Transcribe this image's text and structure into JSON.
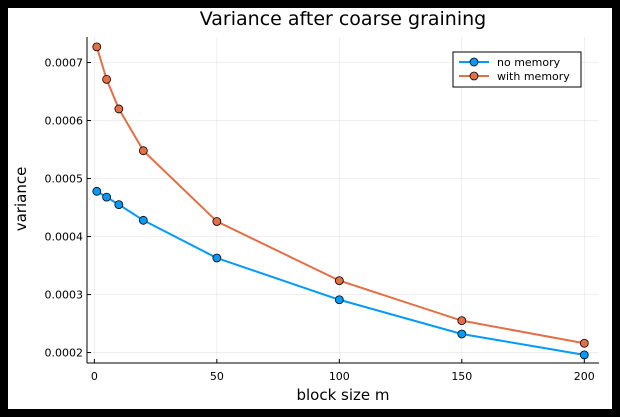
{
  "chart_data": {
    "type": "line",
    "title": "Variance after coarse graining",
    "xlabel": "block size m",
    "ylabel": "variance",
    "xlim": [
      -3,
      206
    ],
    "ylim": [
      0.000182,
      0.000744
    ],
    "xticks": [
      0,
      50,
      100,
      150,
      200
    ],
    "xtick_labels": [
      "0",
      "50",
      "100",
      "150",
      "200"
    ],
    "yticks": [
      0.0002,
      0.0003,
      0.0004,
      0.0005,
      0.0006,
      0.0007
    ],
    "ytick_labels": [
      "0.0002",
      "0.0003",
      "0.0004",
      "0.0005",
      "0.0006",
      "0.0007"
    ],
    "grid": true,
    "legend_position": "top-right",
    "x": [
      1,
      5,
      10,
      20,
      50,
      100,
      150,
      200
    ],
    "series": [
      {
        "name": "no memory",
        "color": "#009AFA",
        "values": [
          0.000478,
          0.000468,
          0.000455,
          0.000428,
          0.000363,
          0.000291,
          0.000232,
          0.000196
        ]
      },
      {
        "name": "with memory",
        "color": "#E26F46",
        "values": [
          0.000727,
          0.000671,
          0.00062,
          0.000548,
          0.000426,
          0.000324,
          0.000255,
          0.000216
        ]
      }
    ]
  }
}
